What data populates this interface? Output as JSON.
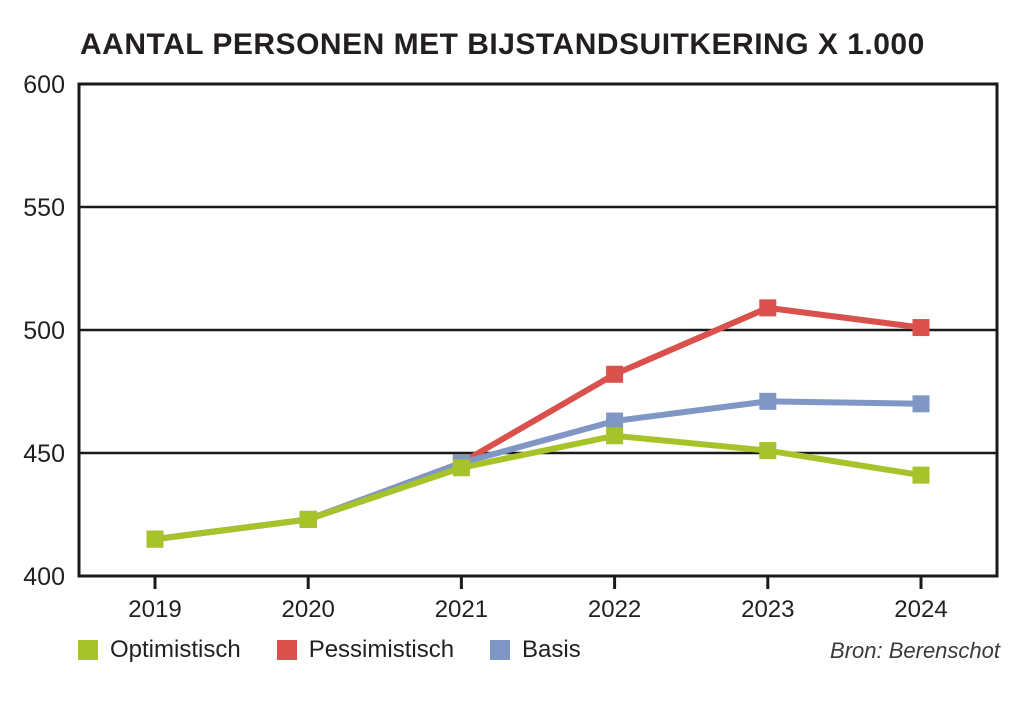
{
  "title": "AANTAL PERSONEN MET BIJSTANDSUITKERING X 1.000",
  "source": {
    "text": "Bron: Berenschot"
  },
  "colors": {
    "text": "#231f20",
    "axis": "#1a1a1a",
    "background": "#ffffff"
  },
  "chart_data": {
    "type": "line",
    "title": "AANTAL PERSONEN MET BIJSTANDSUITKERING X 1.000",
    "categories": [
      "2019",
      "2020",
      "2021",
      "2022",
      "2023",
      "2024"
    ],
    "series": [
      {
        "name": "Optimistisch",
        "color": "#a6c32a",
        "marker": "square",
        "values": [
          415,
          423,
          444,
          457,
          451,
          441
        ]
      },
      {
        "name": "Pessimistisch",
        "color": "#d9504c",
        "marker": "square",
        "values": [
          415,
          423,
          446,
          482,
          509,
          501
        ]
      },
      {
        "name": "Basis",
        "color": "#8096c4",
        "marker": "square",
        "values": [
          415,
          423,
          446,
          463,
          471,
          470
        ]
      }
    ],
    "xlabel": "",
    "ylabel": "",
    "ylim": [
      400,
      600
    ],
    "yticks": [
      400,
      450,
      500,
      550,
      600
    ],
    "grid": "horizontal",
    "legend_position": "bottom-left",
    "source": "Bron: Berenschot"
  }
}
